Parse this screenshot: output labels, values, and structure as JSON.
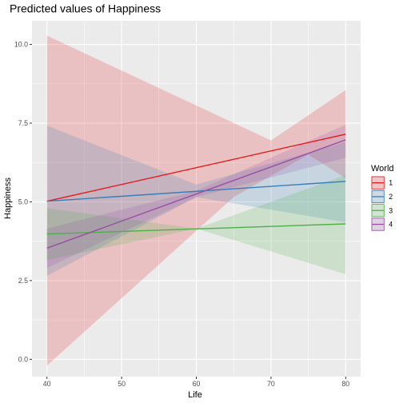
{
  "chart_data": {
    "type": "line",
    "title": "Predicted values of Happiness",
    "xlabel": "Life",
    "ylabel": "Happiness",
    "xlim": [
      38,
      82
    ],
    "ylim": [
      -0.55,
      10.75
    ],
    "x_ticks": [
      40,
      50,
      60,
      70,
      80
    ],
    "y_ticks": [
      0.0,
      2.5,
      5.0,
      7.5,
      10.0
    ],
    "x_tick_labels": [
      "40",
      "50",
      "60",
      "70",
      "80"
    ],
    "y_tick_labels": [
      "0.0",
      "2.5",
      "5.0",
      "7.5",
      "10.0"
    ],
    "grid": true,
    "legend": {
      "title": "World",
      "position": "right"
    },
    "series": [
      {
        "name": "1",
        "color": "#e41a1c",
        "fit": [
          [
            40,
            5.02
          ],
          [
            80,
            7.15
          ]
        ],
        "band_upper": [
          [
            40,
            10.28
          ],
          [
            70,
            6.95
          ],
          [
            80,
            8.55
          ]
        ],
        "band_lower": [
          [
            40,
            -0.2
          ],
          [
            65,
            5.15
          ],
          [
            75,
            6.5
          ],
          [
            80,
            5.75
          ]
        ]
      },
      {
        "name": "2",
        "color": "#377eb8",
        "fit": [
          [
            40,
            5.02
          ],
          [
            80,
            5.65
          ]
        ],
        "band_upper": [
          [
            40,
            7.42
          ],
          [
            60,
            5.55
          ],
          [
            80,
            6.9
          ]
        ],
        "band_lower": [
          [
            40,
            2.65
          ],
          [
            60,
            5.15
          ],
          [
            80,
            4.35
          ]
        ]
      },
      {
        "name": "3",
        "color": "#4daf4a",
        "fit": [
          [
            40,
            3.98
          ],
          [
            80,
            4.3
          ]
        ],
        "band_upper": [
          [
            40,
            4.8
          ],
          [
            60,
            4.15
          ],
          [
            80,
            5.85
          ]
        ],
        "band_lower": [
          [
            40,
            3.15
          ],
          [
            60,
            4.15
          ],
          [
            80,
            2.7
          ]
        ]
      },
      {
        "name": "4",
        "color": "#984ea3",
        "fit": [
          [
            40,
            3.53
          ],
          [
            80,
            6.97
          ]
        ],
        "band_upper": [
          [
            40,
            4.15
          ],
          [
            60,
            5.35
          ],
          [
            80,
            7.45
          ]
        ],
        "band_lower": [
          [
            40,
            2.9
          ],
          [
            60,
            5.15
          ],
          [
            80,
            6.4
          ]
        ]
      }
    ]
  }
}
